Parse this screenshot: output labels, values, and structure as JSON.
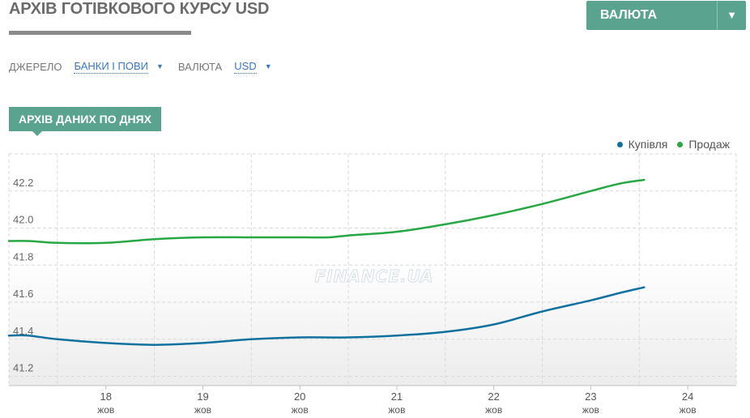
{
  "header": {
    "title": "АРХІВ ГОТІВКОВОГО КУРСУ USD",
    "currency_button_label": "ВАЛЮТА",
    "currency_button_arrow": "▼"
  },
  "filters": {
    "source_label": "ДЖЕРЕЛО",
    "source_value": "БАНКИ І ПОВИ",
    "currency_label": "ВАЛЮТА",
    "currency_value": "USD",
    "caret": "▼"
  },
  "section": {
    "tab_label": "АРХІВ ДАНИХ ПО ДНЯХ"
  },
  "chart_data": {
    "type": "line",
    "watermark": "FINANCE.UA",
    "x_tick_labels": [
      "18",
      "19",
      "20",
      "21",
      "22",
      "23",
      "24"
    ],
    "x_tick_sublabel": "жов",
    "y_ticks": [
      41.2,
      41.4,
      41.6,
      41.8,
      42.0,
      42.2
    ],
    "y_tick_labels": [
      "41.2",
      "41.4",
      "41.6",
      "41.8",
      "42.0",
      "42.2"
    ],
    "ylim": [
      41.15,
      42.4
    ],
    "xlim": [
      17.0,
      24.5
    ],
    "grid": true,
    "legend_position": "top-right",
    "series": [
      {
        "name": "Купівля",
        "color": "#10709e",
        "points": [
          [
            17.0,
            41.42
          ],
          [
            17.2,
            41.42
          ],
          [
            17.5,
            41.4
          ],
          [
            18.0,
            41.38
          ],
          [
            18.5,
            41.37
          ],
          [
            19.0,
            41.38
          ],
          [
            19.5,
            41.4
          ],
          [
            20.0,
            41.41
          ],
          [
            20.5,
            41.41
          ],
          [
            21.0,
            41.42
          ],
          [
            21.5,
            41.44
          ],
          [
            22.0,
            41.48
          ],
          [
            22.5,
            41.55
          ],
          [
            23.0,
            41.61
          ],
          [
            23.3,
            41.65
          ],
          [
            23.55,
            41.68
          ]
        ]
      },
      {
        "name": "Продаж",
        "color": "#28a745",
        "points": [
          [
            17.0,
            41.93
          ],
          [
            17.2,
            41.93
          ],
          [
            17.5,
            41.92
          ],
          [
            18.0,
            41.92
          ],
          [
            18.5,
            41.94
          ],
          [
            19.0,
            41.95
          ],
          [
            19.5,
            41.95
          ],
          [
            20.0,
            41.95
          ],
          [
            20.3,
            41.95
          ],
          [
            20.5,
            41.96
          ],
          [
            21.0,
            41.98
          ],
          [
            21.5,
            42.02
          ],
          [
            22.0,
            42.07
          ],
          [
            22.5,
            42.13
          ],
          [
            23.0,
            42.2
          ],
          [
            23.3,
            42.24
          ],
          [
            23.55,
            42.26
          ]
        ]
      }
    ]
  }
}
